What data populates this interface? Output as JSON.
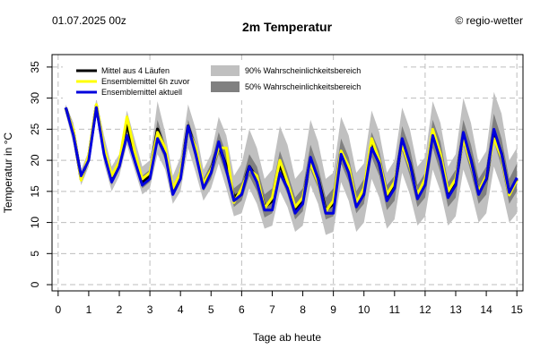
{
  "header": {
    "date_label": "01.07.2025 00z",
    "credit": "© regio-wetter"
  },
  "colors": {
    "mean_all": "#000000",
    "mean_prev": "#ffff00",
    "mean_now": "#0000dd",
    "band90": "#c0c0c0",
    "band50": "#808080",
    "grid": "#bdbdbd"
  },
  "legend": {
    "mean_all": "Mittel aus 4 Läufen",
    "mean_prev": "Ensemblemittel 6h zuvor",
    "mean_now": "Ensemblemittel aktuell",
    "band90": "90% Wahrscheinlichkeitsbereich",
    "band50": "50% Wahrscheinlichkeitsbereich"
  },
  "chart_data": {
    "type": "line",
    "title": "2m Temperatur",
    "xlabel": "Tage ab heute",
    "ylabel": "Temperatur in °C",
    "xlim": [
      -0.2,
      15.2
    ],
    "ylim": [
      -1,
      37
    ],
    "xticks": [
      "0",
      "1",
      "2",
      "3",
      "4",
      "5",
      "6",
      "7",
      "8",
      "9",
      "10",
      "11",
      "12",
      "13",
      "14",
      "15"
    ],
    "yticks": [
      "0",
      "5",
      "10",
      "15",
      "20",
      "25",
      "30",
      "35"
    ],
    "grid": true,
    "legend_placement": "top-left",
    "x": [
      0.25,
      0.5,
      0.75,
      1,
      1.25,
      1.5,
      1.75,
      2,
      2.25,
      2.5,
      2.75,
      3,
      3.25,
      3.5,
      3.75,
      4,
      4.25,
      4.5,
      4.75,
      5,
      5.25,
      5.5,
      5.75,
      6,
      6.25,
      6.5,
      6.75,
      7,
      7.25,
      7.5,
      7.75,
      8,
      8.25,
      8.5,
      8.75,
      9,
      9.25,
      9.5,
      9.75,
      10,
      10.25,
      10.5,
      10.75,
      11,
      11.25,
      11.5,
      11.75,
      12,
      12.25,
      12.5,
      12.75,
      13,
      13.25,
      13.5,
      13.75,
      14,
      14.25,
      14.5,
      14.75,
      15
    ],
    "series": [
      {
        "name": "Ensemblemittel aktuell",
        "values": [
          28.5,
          24,
          17.5,
          20,
          28.5,
          21,
          16.5,
          19,
          24,
          20,
          16,
          17,
          23.5,
          21,
          14.5,
          17,
          25.5,
          21,
          15.5,
          18,
          23,
          18.5,
          13.5,
          14.5,
          19,
          16.5,
          12,
          12,
          18,
          15.5,
          11.5,
          13,
          20.5,
          17,
          11.5,
          11.5,
          21,
          18,
          12.5,
          14.5,
          22,
          19.5,
          13.5,
          15.5,
          23.5,
          19.5,
          13.8,
          16,
          24,
          20,
          14,
          16,
          24.5,
          20,
          14.5,
          17,
          25,
          21,
          14.8,
          17.2
        ]
      },
      {
        "name": "Mittel aus 4 Läufen",
        "values": [
          28.4,
          24.5,
          17,
          20.5,
          28.8,
          21.5,
          17,
          19.5,
          26,
          21,
          16.5,
          17.5,
          25,
          21.5,
          15,
          17.5,
          25.5,
          21.5,
          16,
          18.5,
          22.5,
          19,
          14,
          15,
          19,
          17,
          12.5,
          13.5,
          19.5,
          16,
          12,
          13.5,
          20,
          17,
          12,
          13,
          21,
          18.5,
          13,
          15,
          22.5,
          19.5,
          14,
          16,
          23,
          19.5,
          14.2,
          16.5,
          24.5,
          20.5,
          14.5,
          16.5,
          24,
          20,
          14.8,
          17,
          24.5,
          21,
          14.6,
          17
        ]
      },
      {
        "name": "Ensemblemittel 6h zuvor",
        "values": [
          28.3,
          24.8,
          16.8,
          20.8,
          29,
          22,
          17.5,
          19.8,
          27,
          21.5,
          17,
          18,
          24.5,
          22,
          15.5,
          18,
          25,
          22,
          16.2,
          18.5,
          22,
          22,
          13.2,
          15.5,
          18.5,
          17.5,
          12.3,
          14,
          20,
          16.5,
          12.5,
          14,
          19.5,
          16.5,
          11.8,
          13.5,
          21.5,
          19,
          13.2,
          15.5,
          23.5,
          20,
          14.5,
          16.5,
          22.5,
          19,
          14.5,
          17,
          25,
          21,
          15,
          17,
          23.5,
          19.5,
          15,
          17.5,
          23.5,
          20.5,
          14.4,
          16.8
        ]
      },
      {
        "name": "90% Wahrscheinlichkeitsbereich",
        "low": [
          27.5,
          22.5,
          16,
          19,
          27.5,
          19.5,
          15,
          17.5,
          22.5,
          18.5,
          14.5,
          15.5,
          21,
          18.5,
          13,
          15,
          22,
          18,
          13.5,
          15.5,
          19.5,
          15.5,
          11,
          11.5,
          15.5,
          13,
          9,
          9.5,
          15,
          12.5,
          8.5,
          9.5,
          16,
          13,
          8,
          8.5,
          16.5,
          13.5,
          8.5,
          10,
          17,
          14,
          9,
          10.5,
          18,
          14.5,
          9.5,
          11,
          18.5,
          15,
          9.5,
          11,
          18.5,
          15,
          10,
          11.5,
          19,
          15.5,
          10,
          11.5
        ],
        "high": [
          29,
          26,
          18.5,
          21.5,
          30,
          24,
          19,
          21,
          28,
          23.5,
          19,
          20,
          29.5,
          24.5,
          17.5,
          20.5,
          29,
          25,
          18.5,
          21,
          27,
          24,
          17.5,
          19.5,
          25,
          22,
          17,
          18.5,
          25.5,
          22.5,
          17,
          18.5,
          26.5,
          23,
          17,
          18,
          27,
          24,
          18,
          19.5,
          28,
          24.5,
          18,
          20,
          28.5,
          25,
          19,
          20.5,
          29.5,
          26,
          19,
          21,
          30,
          26,
          19.5,
          21.5,
          31,
          27.5,
          20,
          22
        ]
      },
      {
        "name": "50% Wahrscheinlichkeitsbereich",
        "low": [
          28,
          23.5,
          16.8,
          19.8,
          28.2,
          20.5,
          16,
          18.5,
          24.5,
          19.8,
          15.5,
          16.5,
          23,
          20,
          14.2,
          16.5,
          24.5,
          20,
          15,
          17,
          21,
          17.5,
          12.5,
          13.5,
          17.5,
          15,
          10.8,
          11.5,
          17.5,
          14.5,
          10.5,
          11.8,
          18.5,
          15.5,
          10.5,
          11,
          19.5,
          16.5,
          11.5,
          13,
          20.5,
          17.5,
          12,
          13.5,
          21.5,
          17.5,
          12.5,
          14,
          22,
          18,
          12.5,
          14,
          22.5,
          18,
          13,
          14.5,
          23,
          19,
          13,
          15
        ],
        "high": [
          28.8,
          25.2,
          17.8,
          20.8,
          29.2,
          22.5,
          17.8,
          20,
          26.5,
          21.8,
          17.5,
          18.5,
          26.5,
          22.5,
          16,
          18.5,
          26.5,
          22.8,
          17,
          19.5,
          24.5,
          21,
          15.5,
          16.5,
          21,
          19,
          14.5,
          15.5,
          21.5,
          18,
          14,
          15.5,
          22.5,
          19,
          14,
          15.5,
          23.5,
          20.5,
          15,
          17,
          24.5,
          21.5,
          16,
          17.5,
          25.5,
          22,
          16,
          18,
          26.5,
          23,
          16.5,
          18.5,
          26.5,
          22.5,
          17,
          19,
          27.5,
          23.5,
          17,
          19.5
        ]
      }
    ]
  }
}
